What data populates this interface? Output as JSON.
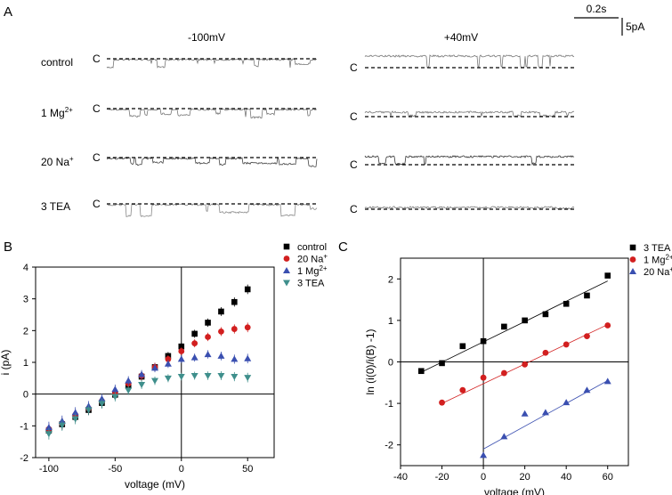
{
  "panelA": {
    "label": "A",
    "col_left": "-100mV",
    "col_right": "+40mV",
    "closed_marker": "C",
    "rows": [
      {
        "label": "control",
        "label_sup": ""
      },
      {
        "label": "1 Mg",
        "label_sup": "2+"
      },
      {
        "label": "20 Na",
        "label_sup": "+"
      },
      {
        "label": "3 TEA",
        "label_sup": ""
      }
    ],
    "scale_time": "0.2s",
    "scale_current": "5pA"
  },
  "chart_data": [
    {
      "type": "scatter",
      "panel": "B",
      "xlabel": "voltage (mV)",
      "ylabel": "i (pA)",
      "xlim": [
        -110,
        70
      ],
      "ylim": [
        -2,
        4
      ],
      "xticks": [
        -100,
        -50,
        0,
        50
      ],
      "yticks": [
        -2,
        -1,
        0,
        1,
        2,
        3,
        4
      ],
      "legend_position": "top-right",
      "series": [
        {
          "name": "control",
          "sup": "",
          "marker": "square",
          "color": "#000000",
          "x": [
            -100,
            -90,
            -80,
            -70,
            -60,
            -50,
            -40,
            -30,
            -20,
            -10,
            0,
            10,
            20,
            30,
            40,
            50
          ],
          "y": [
            -1.15,
            -0.95,
            -0.72,
            -0.5,
            -0.28,
            -0.02,
            0.25,
            0.55,
            0.85,
            1.2,
            1.5,
            1.9,
            2.25,
            2.6,
            2.9,
            3.3
          ]
        },
        {
          "name": "20 Na",
          "sup": "+",
          "marker": "circle",
          "color": "#d21f1f",
          "x": [
            -100,
            -90,
            -80,
            -70,
            -60,
            -50,
            -40,
            -30,
            -20,
            -10,
            0,
            10,
            20,
            30,
            40,
            50
          ],
          "y": [
            -1.1,
            -0.92,
            -0.65,
            -0.45,
            -0.22,
            0.02,
            0.33,
            0.58,
            0.85,
            1.1,
            1.35,
            1.6,
            1.8,
            1.97,
            2.05,
            2.1
          ]
        },
        {
          "name": "1 Mg",
          "sup": "2+",
          "marker": "triangle-up",
          "color": "#3a4fb0",
          "x": [
            -100,
            -90,
            -80,
            -70,
            -60,
            -50,
            -40,
            -30,
            -20,
            -10,
            0,
            10,
            20,
            30,
            40,
            50
          ],
          "y": [
            -1.05,
            -0.85,
            -0.58,
            -0.38,
            -0.15,
            0.15,
            0.42,
            0.62,
            0.82,
            0.95,
            1.1,
            1.15,
            1.25,
            1.2,
            1.1,
            1.12
          ]
        },
        {
          "name": "3 TEA",
          "sup": "",
          "marker": "triangle-down",
          "color": "#3f8f8c",
          "x": [
            -100,
            -90,
            -80,
            -70,
            -60,
            -50,
            -40,
            -30,
            -20,
            -10,
            0,
            10,
            20,
            30,
            40,
            50
          ],
          "y": [
            -1.25,
            -0.98,
            -0.78,
            -0.5,
            -0.3,
            -0.08,
            0.12,
            0.3,
            0.42,
            0.5,
            0.55,
            0.58,
            0.58,
            0.58,
            0.55,
            0.52
          ]
        }
      ]
    },
    {
      "type": "scatter",
      "panel": "C",
      "xlabel": "voltage (mV)",
      "ylabel": "ln (i(0)/i(B) -1)",
      "xlim": [
        -40,
        70
      ],
      "ylim": [
        -2.5,
        2.5
      ],
      "xticks": [
        -40,
        -20,
        0,
        20,
        40,
        60
      ],
      "yticks": [
        -2,
        -1,
        0,
        1,
        2
      ],
      "legend_position": "top-right",
      "series": [
        {
          "name": "3 TEA",
          "sup": "",
          "marker": "square",
          "color": "#000000",
          "x": [
            -30,
            -20,
            -10,
            0,
            10,
            20,
            30,
            40,
            50,
            60
          ],
          "y": [
            -0.22,
            -0.03,
            0.38,
            0.5,
            0.85,
            1.0,
            1.15,
            1.4,
            1.6,
            2.08
          ],
          "fit": [
            [
              -30,
              -0.25
            ],
            [
              60,
              1.95
            ]
          ]
        },
        {
          "name": "1 Mg",
          "sup": "2+",
          "marker": "circle",
          "color": "#d21f1f",
          "x": [
            -20,
            -10,
            0,
            10,
            20,
            30,
            40,
            50,
            60
          ],
          "y": [
            -0.98,
            -0.68,
            -0.38,
            -0.27,
            -0.06,
            0.22,
            0.42,
            0.62,
            0.88
          ],
          "fit": [
            [
              -20,
              -1.0
            ],
            [
              60,
              0.9
            ]
          ]
        },
        {
          "name": "20 Na",
          "sup": "+",
          "marker": "triangle-up",
          "color": "#3a4fb0",
          "x": [
            0,
            10,
            20,
            30,
            40,
            50,
            60
          ],
          "y": [
            -2.25,
            -1.8,
            -1.25,
            -1.22,
            -0.98,
            -0.68,
            -0.47
          ],
          "fit": [
            [
              0,
              -2.1
            ],
            [
              60,
              -0.45
            ]
          ]
        }
      ]
    }
  ]
}
